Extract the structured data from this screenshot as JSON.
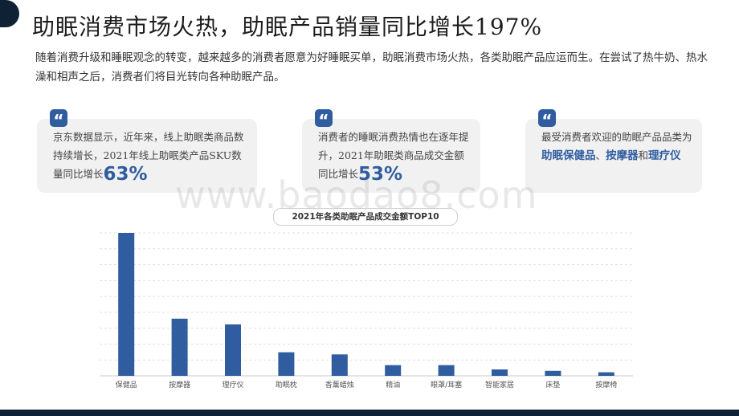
{
  "header": {
    "title": "助眠消费市场火热，助眠产品销量同比增长197%"
  },
  "intro": "随着消费升级和睡眠观念的转变，越来越多的消费者愿意为好睡眠买单，助眠消费市场火热，各类助眠产品应运而生。在尝试了热牛奶、热水澡和相声之后，消费者们将目光转向各种助眠产品。",
  "cards": [
    {
      "quote_icon": "quote-icon",
      "text": "京东数据显示，近年来，线上助眠类商品数持续增长，2021年线上助眠类产品SKU数量同比增长",
      "highlight": "63%"
    },
    {
      "quote_icon": "quote-icon",
      "text": "消费者的睡眠消费热情也在逐年提升，2021年助眠类商品成交金额同比增长",
      "highlight": "53%"
    },
    {
      "quote_icon": "quote-icon",
      "text_a": "最受消费者欢迎的助眠产品品类为",
      "hl_a": "助眠保健品",
      "text_b": "、",
      "hl_b": "按摩器",
      "text_c": "和",
      "hl_c": "理疗仪"
    }
  ],
  "watermark": "www.baodao8.com",
  "colors": {
    "accent": "#2f5d9f",
    "dark": "#0f2134",
    "card_bg": "#f1f1f1"
  },
  "chart_data": {
    "type": "bar",
    "title": "2021年各类助眠产品成交金额TOP10",
    "categories": [
      "保健品",
      "按摩器",
      "理疗仪",
      "助眠枕",
      "香薰蜡烛",
      "精油",
      "眼罩/耳塞",
      "智能家居",
      "床垫",
      "按摩椅"
    ],
    "values": [
      100,
      40,
      36,
      16.5,
      15,
      7.5,
      7.5,
      4.5,
      3.5,
      2.5
    ],
    "ylim": [
      0,
      100
    ],
    "xlabel": "",
    "ylabel": "",
    "grid": true,
    "legend": "none",
    "bar_color": "#2f5d9f"
  }
}
